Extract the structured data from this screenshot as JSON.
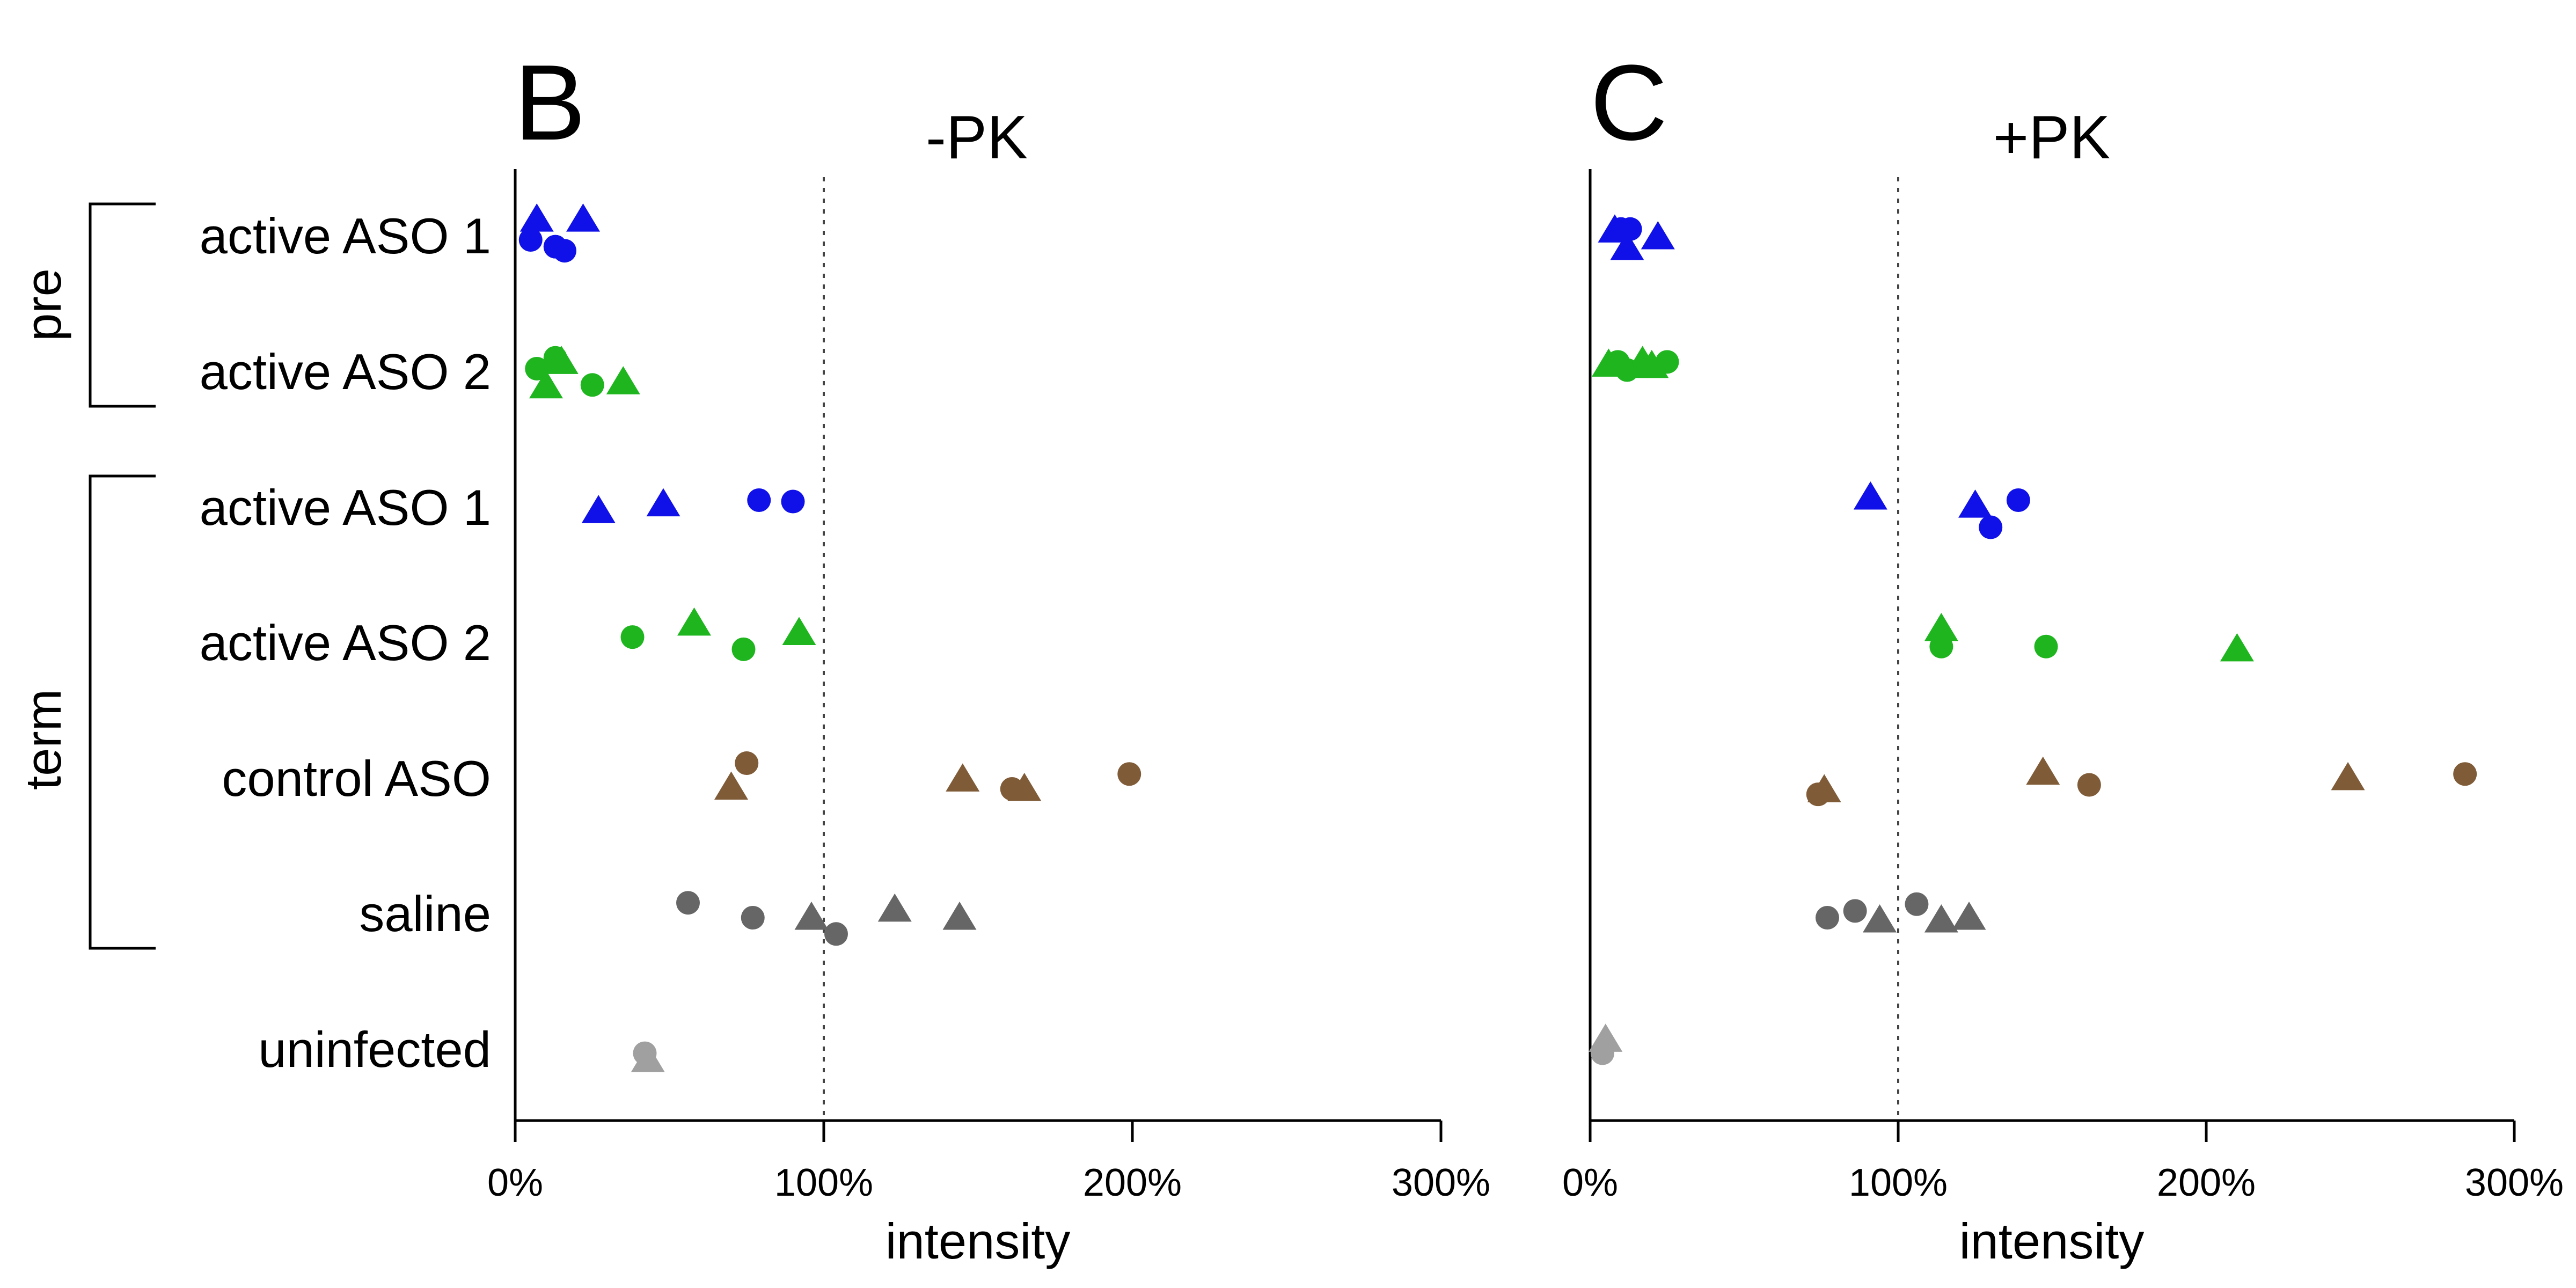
{
  "categories": [
    "active ASO 1",
    "active ASO 2",
    "active ASO 1",
    "active ASO 2",
    "control ASO",
    "saline",
    "uninfected"
  ],
  "groups": [
    {
      "label": "pre",
      "from": 0,
      "to": 1
    },
    {
      "label": "term",
      "from": 2,
      "to": 5
    }
  ],
  "colors": {
    "active ASO 1": "#1010e8",
    "active ASO 2": "#1eb51e",
    "control ASO": "#7f5b37",
    "saline": "#666666",
    "uninfected": "#a0a0a0"
  },
  "marker_legend": {
    "circle": "circle",
    "triangle": "triangle"
  },
  "chart_data": [
    {
      "type": "scatter",
      "panel_letter": "B",
      "title": "-PK",
      "xlabel": "intensity",
      "xlim": [
        0,
        300
      ],
      "xticks": [
        "0%",
        "100%",
        "200%",
        "300%"
      ],
      "xtick_values": [
        0,
        100,
        200,
        300
      ],
      "reference_x": 100,
      "points": [
        {
          "cat": 0,
          "x": 5,
          "dy": 0.0,
          "m": "circle"
        },
        {
          "cat": 0,
          "x": 7,
          "dy": -0.15,
          "m": "triangle"
        },
        {
          "cat": 0,
          "x": 13,
          "dy": 0.05,
          "m": "circle"
        },
        {
          "cat": 0,
          "x": 16,
          "dy": 0.08,
          "m": "circle"
        },
        {
          "cat": 0,
          "x": 22,
          "dy": -0.15,
          "m": "triangle"
        },
        {
          "cat": 1,
          "x": 7,
          "dy": -0.05,
          "m": "circle"
        },
        {
          "cat": 1,
          "x": 10,
          "dy": 0.08,
          "m": "triangle"
        },
        {
          "cat": 1,
          "x": 13,
          "dy": -0.13,
          "m": "circle"
        },
        {
          "cat": 1,
          "x": 15,
          "dy": -0.1,
          "m": "triangle"
        },
        {
          "cat": 1,
          "x": 25,
          "dy": 0.07,
          "m": "circle"
        },
        {
          "cat": 1,
          "x": 35,
          "dy": 0.05,
          "m": "triangle"
        },
        {
          "cat": 2,
          "x": 27,
          "dy": 0.0,
          "m": "triangle"
        },
        {
          "cat": 2,
          "x": 48,
          "dy": -0.05,
          "m": "triangle"
        },
        {
          "cat": 2,
          "x": 79,
          "dy": -0.08,
          "m": "circle"
        },
        {
          "cat": 2,
          "x": 90,
          "dy": -0.07,
          "m": "circle"
        },
        {
          "cat": 3,
          "x": 38,
          "dy": -0.07,
          "m": "circle"
        },
        {
          "cat": 3,
          "x": 58,
          "dy": -0.17,
          "m": "triangle"
        },
        {
          "cat": 3,
          "x": 74,
          "dy": 0.02,
          "m": "circle"
        },
        {
          "cat": 3,
          "x": 92,
          "dy": -0.1,
          "m": "triangle"
        },
        {
          "cat": 4,
          "x": 75,
          "dy": -0.14,
          "m": "circle"
        },
        {
          "cat": 4,
          "x": 70,
          "dy": 0.04,
          "m": "triangle"
        },
        {
          "cat": 4,
          "x": 145,
          "dy": -0.02,
          "m": "triangle"
        },
        {
          "cat": 4,
          "x": 161,
          "dy": 0.05,
          "m": "circle"
        },
        {
          "cat": 4,
          "x": 165,
          "dy": 0.05,
          "m": "triangle"
        },
        {
          "cat": 4,
          "x": 199,
          "dy": -0.06,
          "m": "circle"
        },
        {
          "cat": 5,
          "x": 56,
          "dy": -0.11,
          "m": "circle"
        },
        {
          "cat": 5,
          "x": 77,
          "dy": 0.0,
          "m": "circle"
        },
        {
          "cat": 5,
          "x": 96,
          "dy": 0.0,
          "m": "triangle"
        },
        {
          "cat": 5,
          "x": 104,
          "dy": 0.12,
          "m": "circle"
        },
        {
          "cat": 5,
          "x": 123,
          "dy": -0.06,
          "m": "triangle"
        },
        {
          "cat": 5,
          "x": 144,
          "dy": 0.0,
          "m": "triangle"
        },
        {
          "cat": 6,
          "x": 42,
          "dy": 0.0,
          "m": "circle"
        },
        {
          "cat": 6,
          "x": 43,
          "dy": 0.05,
          "m": "triangle"
        }
      ]
    },
    {
      "type": "scatter",
      "panel_letter": "C",
      "title": "+PK",
      "xlabel": "intensity",
      "xlim": [
        0,
        300
      ],
      "xticks": [
        "0%",
        "100%",
        "200%",
        "300%"
      ],
      "xtick_values": [
        0,
        100,
        200,
        300
      ],
      "reference_x": 100,
      "points": [
        {
          "cat": 0,
          "x": 8,
          "dy": -0.07,
          "m": "triangle"
        },
        {
          "cat": 0,
          "x": 10,
          "dy": -0.08,
          "m": "circle"
        },
        {
          "cat": 0,
          "x": 13,
          "dy": -0.08,
          "m": "circle"
        },
        {
          "cat": 0,
          "x": 12,
          "dy": 0.06,
          "m": "triangle"
        },
        {
          "cat": 0,
          "x": 22,
          "dy": -0.02,
          "m": "triangle"
        },
        {
          "cat": 1,
          "x": 6,
          "dy": -0.08,
          "m": "triangle"
        },
        {
          "cat": 1,
          "x": 9,
          "dy": -0.1,
          "m": "circle"
        },
        {
          "cat": 1,
          "x": 12,
          "dy": -0.04,
          "m": "circle"
        },
        {
          "cat": 1,
          "x": 17,
          "dy": -0.1,
          "m": "triangle"
        },
        {
          "cat": 1,
          "x": 20,
          "dy": -0.07,
          "m": "triangle"
        },
        {
          "cat": 1,
          "x": 25,
          "dy": -0.1,
          "m": "circle"
        },
        {
          "cat": 2,
          "x": 91,
          "dy": -0.1,
          "m": "triangle"
        },
        {
          "cat": 2,
          "x": 125,
          "dy": -0.04,
          "m": "triangle"
        },
        {
          "cat": 2,
          "x": 139,
          "dy": -0.08,
          "m": "circle"
        },
        {
          "cat": 2,
          "x": 130,
          "dy": 0.12,
          "m": "circle"
        },
        {
          "cat": 3,
          "x": 114,
          "dy": -0.13,
          "m": "triangle"
        },
        {
          "cat": 3,
          "x": 114,
          "dy": 0.0,
          "m": "circle"
        },
        {
          "cat": 3,
          "x": 148,
          "dy": 0.0,
          "m": "circle"
        },
        {
          "cat": 3,
          "x": 210,
          "dy": 0.02,
          "m": "triangle"
        },
        {
          "cat": 4,
          "x": 74,
          "dy": 0.09,
          "m": "circle"
        },
        {
          "cat": 4,
          "x": 76,
          "dy": 0.06,
          "m": "triangle"
        },
        {
          "cat": 4,
          "x": 147,
          "dy": -0.07,
          "m": "triangle"
        },
        {
          "cat": 4,
          "x": 162,
          "dy": 0.02,
          "m": "circle"
        },
        {
          "cat": 4,
          "x": 246,
          "dy": -0.03,
          "m": "triangle"
        },
        {
          "cat": 4,
          "x": 284,
          "dy": -0.06,
          "m": "circle"
        },
        {
          "cat": 5,
          "x": 77,
          "dy": 0.0,
          "m": "circle"
        },
        {
          "cat": 5,
          "x": 86,
          "dy": -0.05,
          "m": "circle"
        },
        {
          "cat": 5,
          "x": 94,
          "dy": 0.02,
          "m": "triangle"
        },
        {
          "cat": 5,
          "x": 106,
          "dy": -0.1,
          "m": "circle"
        },
        {
          "cat": 5,
          "x": 114,
          "dy": 0.02,
          "m": "triangle"
        },
        {
          "cat": 5,
          "x": 123,
          "dy": 0.0,
          "m": "triangle"
        },
        {
          "cat": 6,
          "x": 4,
          "dy": 0.0,
          "m": "circle"
        },
        {
          "cat": 6,
          "x": 5,
          "dy": -0.1,
          "m": "triangle"
        }
      ]
    }
  ]
}
